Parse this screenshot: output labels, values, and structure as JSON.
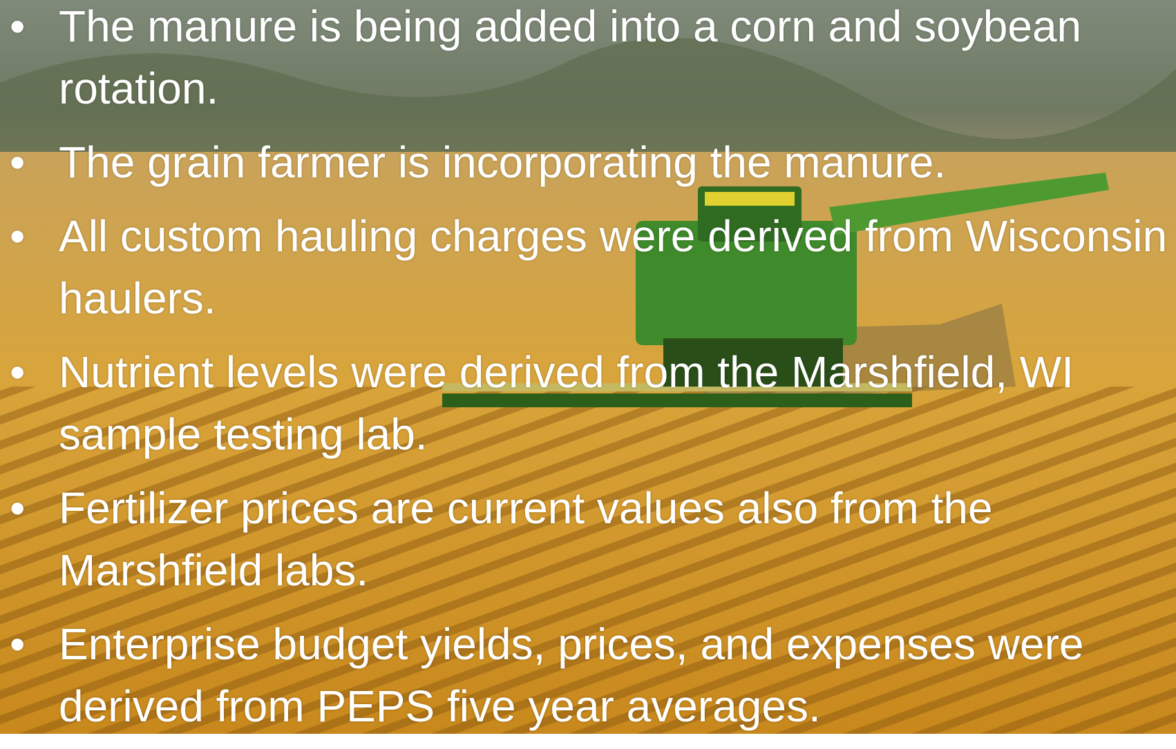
{
  "bullets": [
    "The manure is being added into a corn and soybean rotation.",
    "The grain farmer is incorporating the manure.",
    "All custom hauling charges were derived from Wisconsin haulers.",
    "Nutrient levels were derived from the Marshfield, WI sample testing lab.",
    "Fertilizer prices are current values also from the Marshfield labs.",
    "Enterprise budget yields, prices, and expenses were derived from PEPS five year averages."
  ]
}
